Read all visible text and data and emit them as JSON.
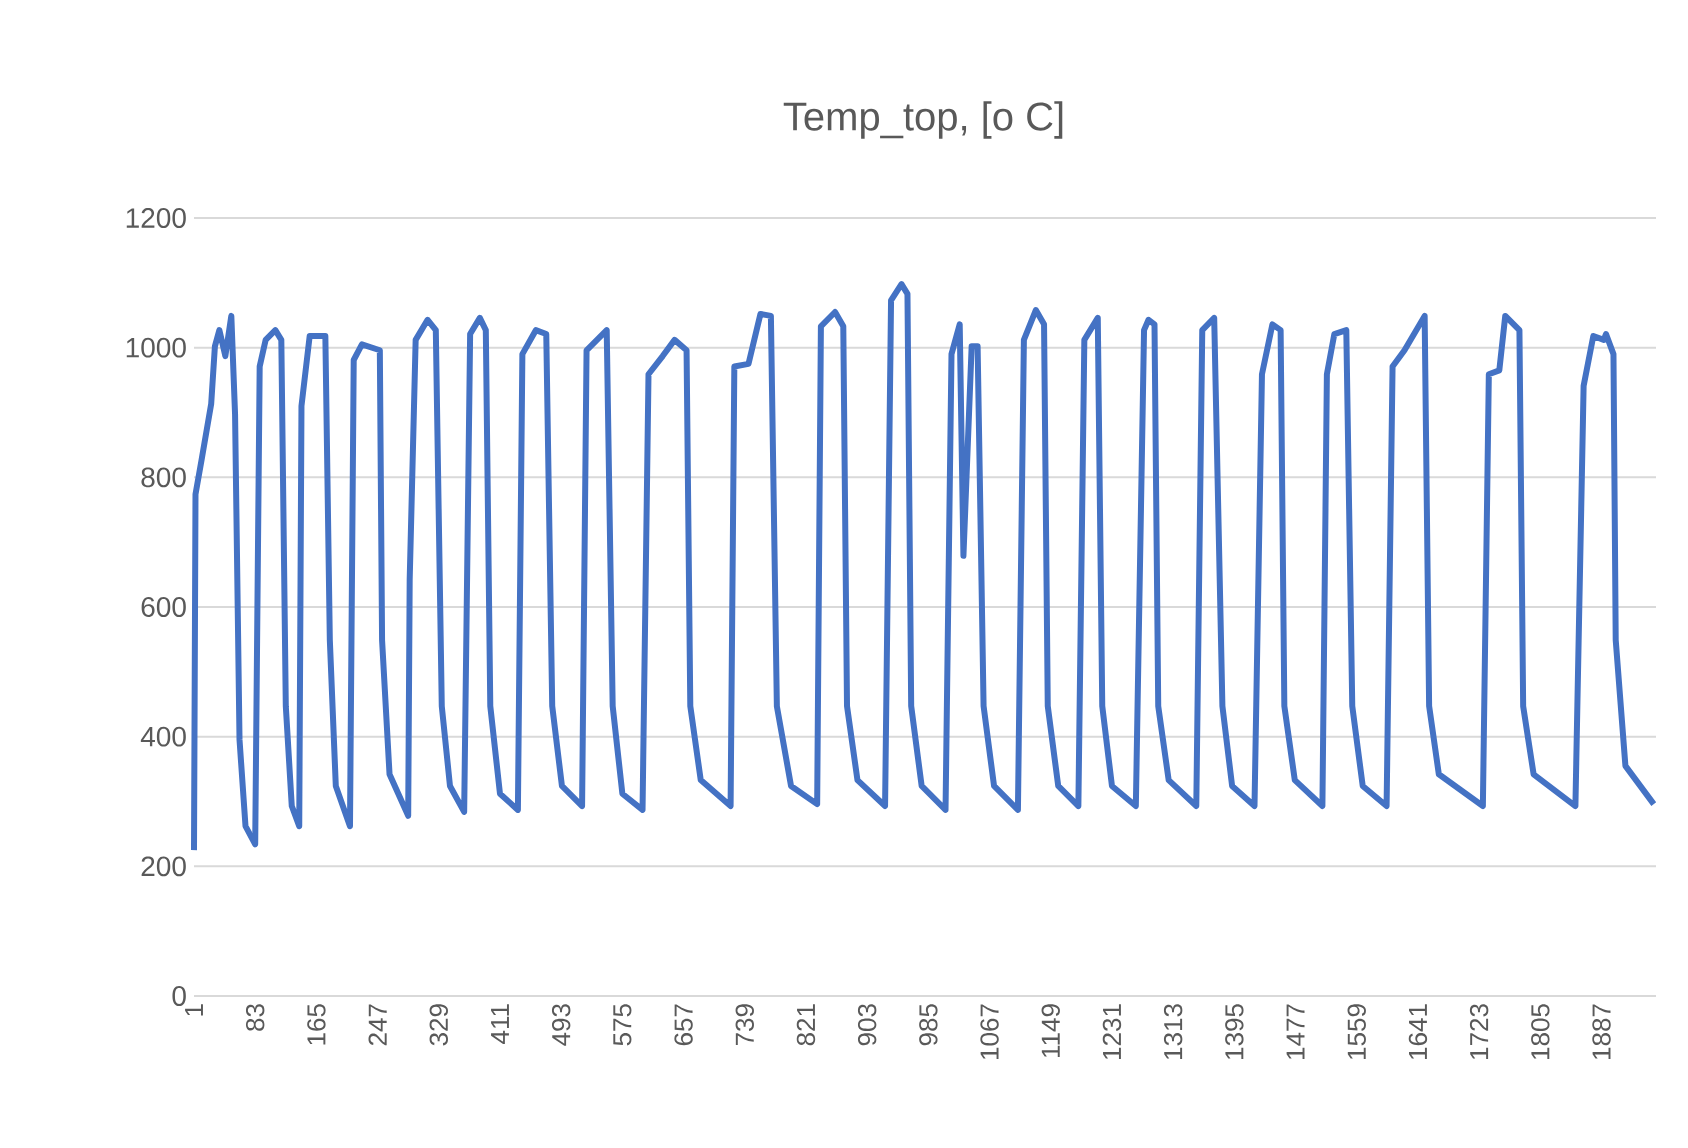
{
  "chart_data": {
    "type": "line",
    "title": "Temp_top, [o C]",
    "x": [
      1,
      3,
      11,
      24,
      29,
      35,
      43,
      51,
      56,
      62,
      70,
      83,
      89,
      97,
      110,
      118,
      124,
      132,
      142,
      145,
      156,
      177,
      183,
      191,
      210,
      215,
      226,
      250,
      253,
      263,
      288,
      290,
      298,
      314,
      325,
      333,
      344,
      363,
      371,
      384,
      392,
      398,
      411,
      435,
      441,
      459,
      473,
      481,
      494,
      521,
      527,
      554,
      562,
      575,
      602,
      610,
      629,
      645,
      661,
      666,
      680,
      720,
      725,
      744,
      760,
      774,
      782,
      801,
      836,
      841,
      860,
      871,
      876,
      890,
      927,
      935,
      949,
      957,
      962,
      976,
      1008,
      1016,
      1027,
      1032,
      1043,
      1051,
      1059,
      1073,
      1105,
      1113,
      1129,
      1140,
      1145,
      1159,
      1186,
      1194,
      1212,
      1218,
      1231,
      1263,
      1274,
      1280,
      1288,
      1293,
      1307,
      1344,
      1352,
      1368,
      1379,
      1392,
      1422,
      1432,
      1446,
      1457,
      1462,
      1476,
      1513,
      1519,
      1529,
      1545,
      1553,
      1567,
      1599,
      1607,
      1623,
      1650,
      1656,
      1669,
      1728,
      1736,
      1750,
      1758,
      1777,
      1782,
      1796,
      1852,
      1863,
      1876,
      1890,
      1893,
      1903,
      1906,
      1919,
      1957
    ],
    "series": [
      {
        "color": "#4472c4",
        "values": [
          225,
          774,
          826,
          913,
          1002,
          1027,
          987,
          1049,
          898,
          395,
          262,
          234,
          971,
          1012,
          1027,
          1012,
          447,
          293,
          262,
          910,
          1018,
          1018,
          549,
          324,
          262,
          981,
          1005,
          996,
          549,
          342,
          278,
          642,
          1012,
          1043,
          1027,
          447,
          324,
          284,
          1021,
          1046,
          1027,
          447,
          312,
          287,
          990,
          1027,
          1021,
          447,
          324,
          293,
          996,
          1027,
          447,
          312,
          287,
          959,
          987,
          1012,
          996,
          447,
          333,
          293,
          971,
          975,
          1052,
          1049,
          447,
          324,
          296,
          1033,
          1055,
          1033,
          447,
          333,
          293,
          1073,
          1098,
          1083,
          447,
          324,
          287,
          990,
          1036,
          679,
          1002,
          1002,
          447,
          324,
          287,
          1012,
          1058,
          1036,
          447,
          324,
          293,
          1012,
          1046,
          447,
          324,
          293,
          1027,
          1043,
          1036,
          447,
          333,
          293,
          1027,
          1046,
          447,
          324,
          293,
          959,
          1036,
          1027,
          447,
          333,
          293,
          959,
          1021,
          1027,
          447,
          324,
          293,
          971,
          996,
          1049,
          447,
          342,
          293,
          959,
          965,
          1049,
          1027,
          447,
          342,
          293,
          941,
          1018,
          1012,
          1021,
          990,
          549,
          355,
          296
        ]
      }
    ],
    "xlim": [
      1,
      1960
    ],
    "xticks": [
      1,
      83,
      165,
      247,
      329,
      411,
      493,
      575,
      657,
      739,
      821,
      903,
      985,
      1067,
      1149,
      1231,
      1313,
      1395,
      1477,
      1559,
      1641,
      1723,
      1805,
      1887
    ],
    "ylim": [
      0,
      1200
    ],
    "yticks": [
      0,
      200,
      400,
      600,
      800,
      1000,
      1200
    ],
    "grid": "y",
    "marker": "none",
    "line_style": "solid"
  }
}
